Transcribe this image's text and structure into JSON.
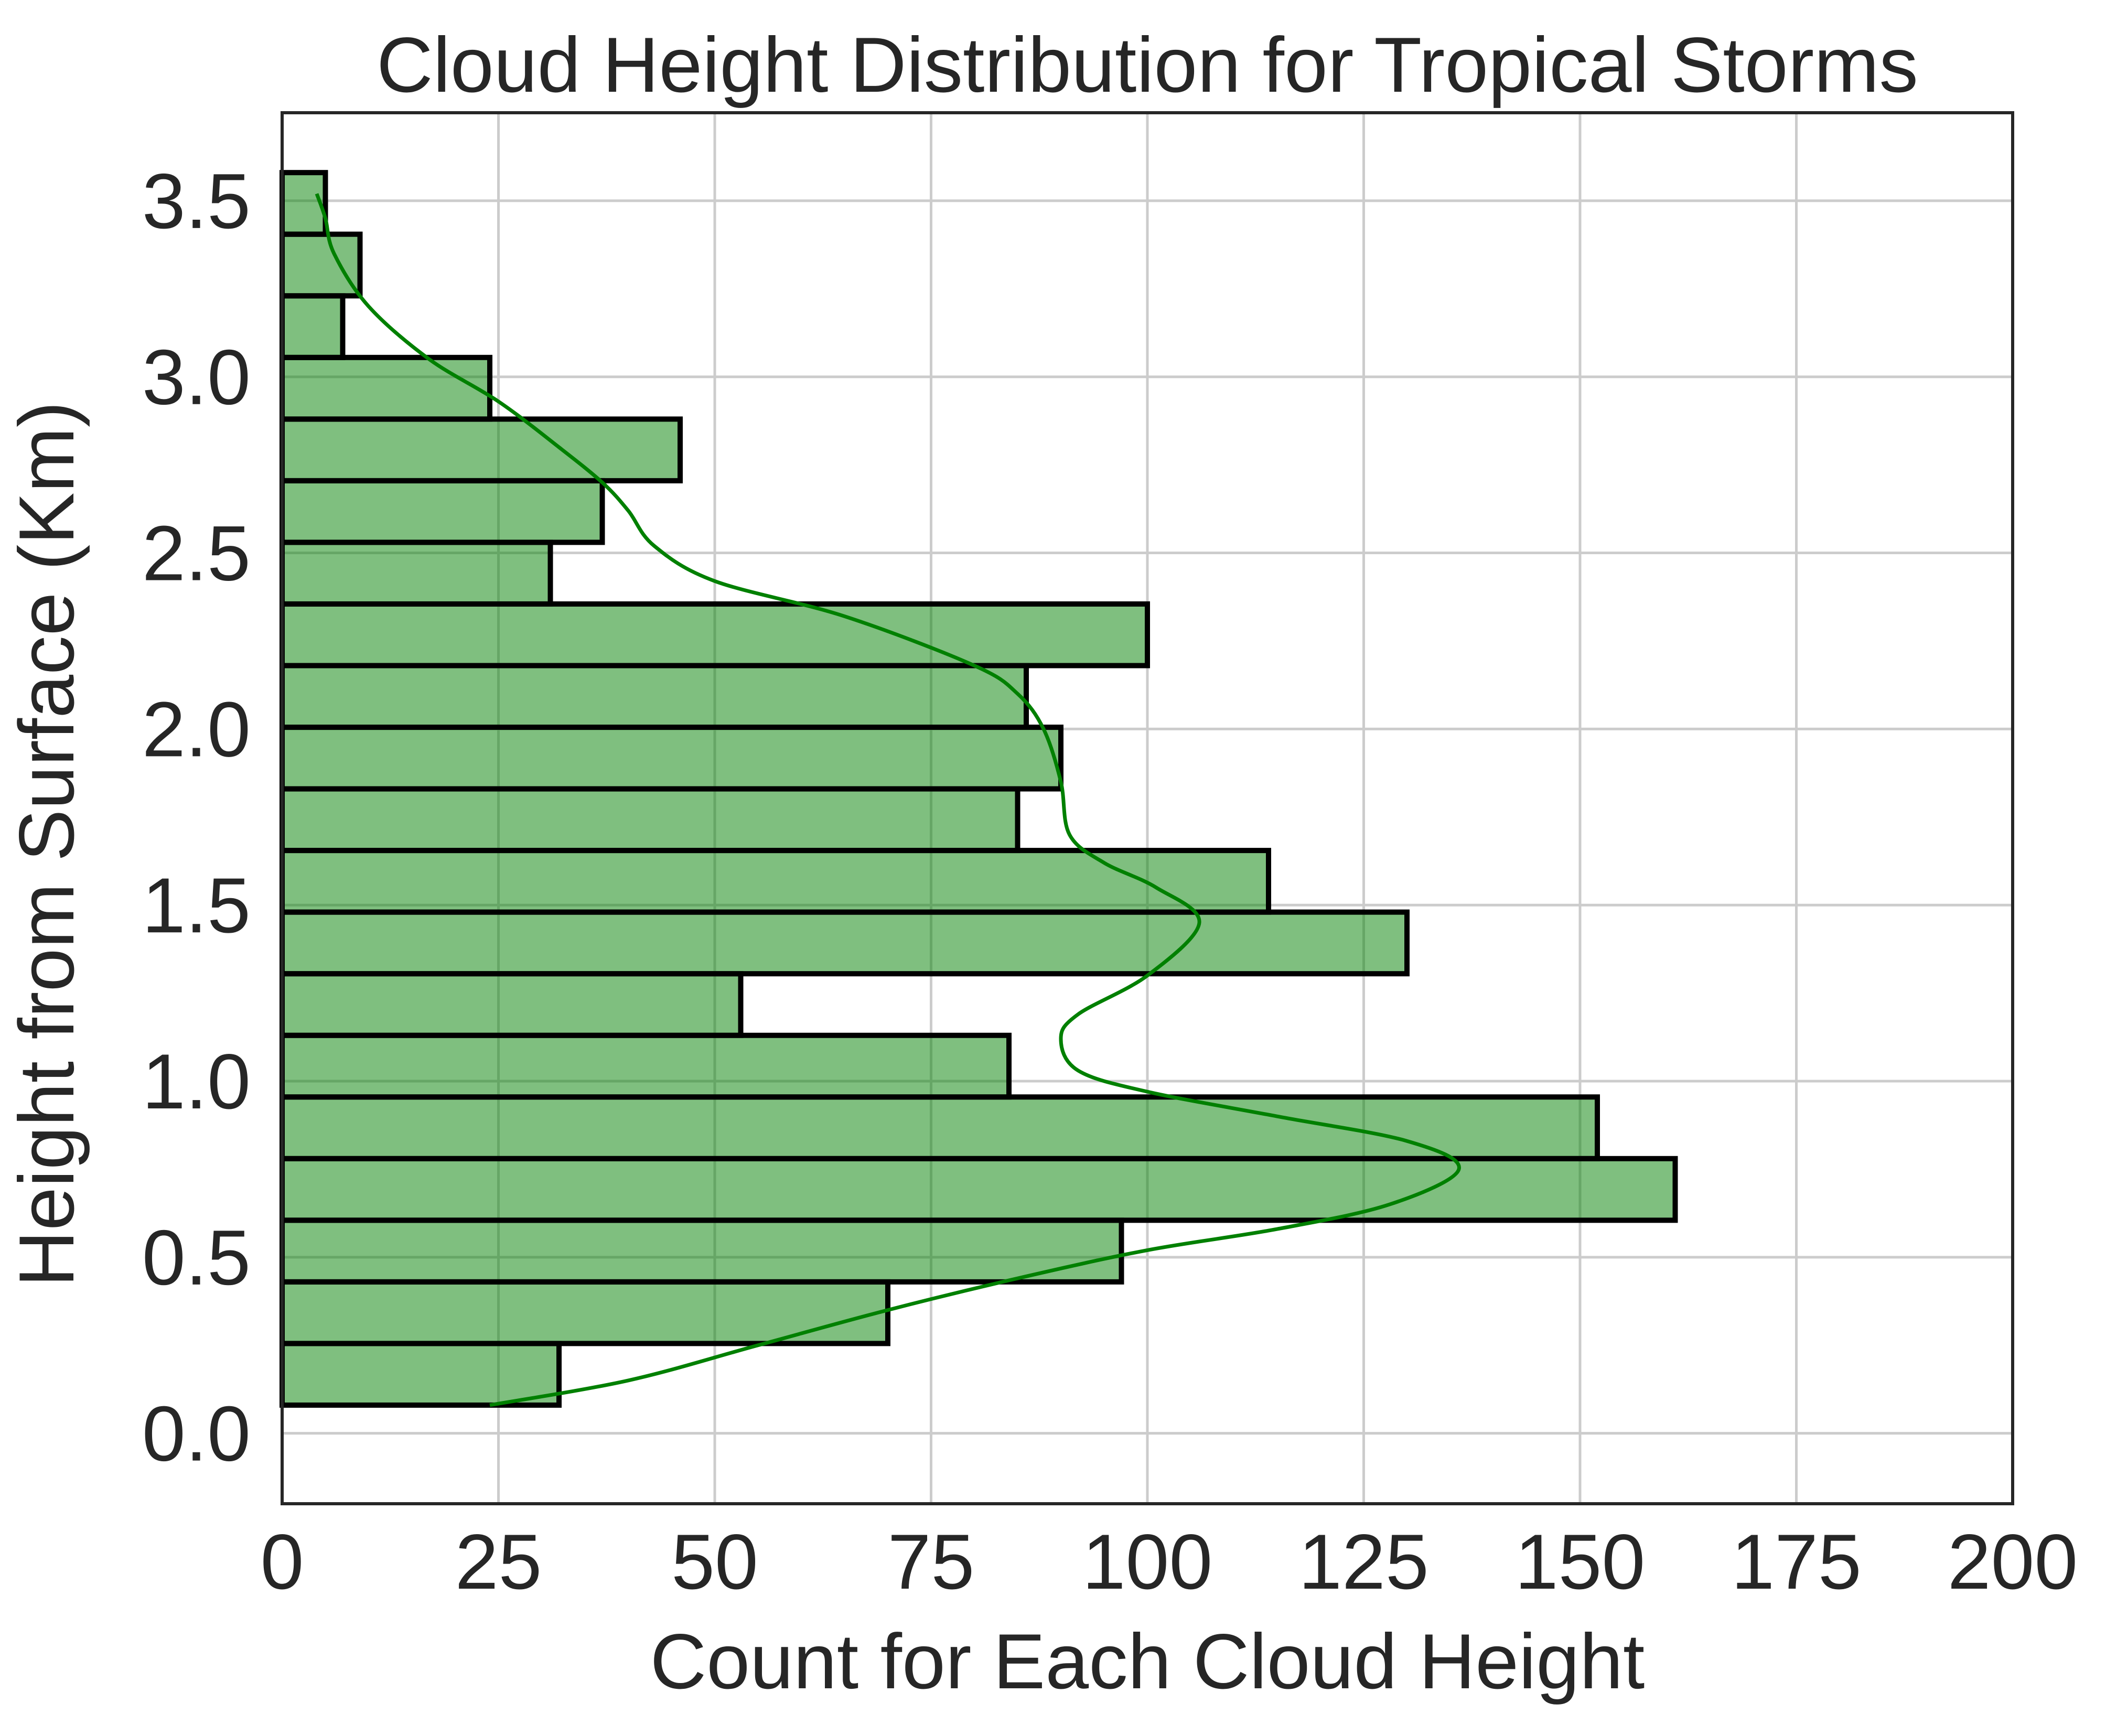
{
  "chart_data": {
    "type": "histogram",
    "orientation": "horizontal",
    "title": "Cloud Height Distribution for Tropical Storms",
    "xlabel": "Count for Each Cloud Height",
    "ylabel": "Height from Surface (Km)",
    "xlim": [
      0,
      200
    ],
    "ylim": [
      -0.2,
      3.75
    ],
    "xticks": [
      "0",
      "25",
      "50",
      "75",
      "100",
      "125",
      "150",
      "175",
      "200"
    ],
    "yticks": [
      "0.0",
      "0.5",
      "1.0",
      "1.5",
      "2.0",
      "2.5",
      "3.0",
      "3.5"
    ],
    "grid": true,
    "bars": [
      {
        "y0": 0.08,
        "y1": 0.255,
        "count": 32
      },
      {
        "y0": 0.255,
        "y1": 0.43,
        "count": 70
      },
      {
        "y0": 0.43,
        "y1": 0.605,
        "count": 97
      },
      {
        "y0": 0.605,
        "y1": 0.78,
        "count": 161
      },
      {
        "y0": 0.78,
        "y1": 0.955,
        "count": 152
      },
      {
        "y0": 0.955,
        "y1": 1.13,
        "count": 84
      },
      {
        "y0": 1.13,
        "y1": 1.305,
        "count": 53
      },
      {
        "y0": 1.305,
        "y1": 1.48,
        "count": 130
      },
      {
        "y0": 1.48,
        "y1": 1.655,
        "count": 114
      },
      {
        "y0": 1.655,
        "y1": 1.83,
        "count": 85
      },
      {
        "y0": 1.83,
        "y1": 2.005,
        "count": 90
      },
      {
        "y0": 2.005,
        "y1": 2.18,
        "count": 86
      },
      {
        "y0": 2.18,
        "y1": 2.355,
        "count": 100
      },
      {
        "y0": 2.355,
        "y1": 2.53,
        "count": 31
      },
      {
        "y0": 2.53,
        "y1": 2.705,
        "count": 37
      },
      {
        "y0": 2.705,
        "y1": 2.88,
        "count": 46
      },
      {
        "y0": 2.88,
        "y1": 3.055,
        "count": 24
      },
      {
        "y0": 3.055,
        "y1": 3.23,
        "count": 7
      },
      {
        "y0": 3.23,
        "y1": 3.405,
        "count": 9
      },
      {
        "y0": 3.405,
        "y1": 3.58,
        "count": 5
      }
    ],
    "kde": [
      [
        24,
        0.08
      ],
      [
        40,
        0.15
      ],
      [
        55,
        0.25
      ],
      [
        70,
        0.35
      ],
      [
        85,
        0.44
      ],
      [
        100,
        0.52
      ],
      [
        115,
        0.58
      ],
      [
        128,
        0.65
      ],
      [
        136,
        0.75
      ],
      [
        130,
        0.83
      ],
      [
        115,
        0.9
      ],
      [
        100,
        0.97
      ],
      [
        92,
        1.03
      ],
      [
        90,
        1.12
      ],
      [
        92,
        1.19
      ],
      [
        100,
        1.3
      ],
      [
        106,
        1.45
      ],
      [
        101,
        1.55
      ],
      [
        95,
        1.62
      ],
      [
        91,
        1.7
      ],
      [
        90,
        1.85
      ],
      [
        88,
        2.0
      ],
      [
        85,
        2.1
      ],
      [
        80,
        2.18
      ],
      [
        65,
        2.32
      ],
      [
        50,
        2.42
      ],
      [
        43,
        2.52
      ],
      [
        40,
        2.62
      ],
      [
        37,
        2.7
      ],
      [
        32,
        2.8
      ],
      [
        25,
        2.93
      ],
      [
        17,
        3.05
      ],
      [
        10,
        3.2
      ],
      [
        6,
        3.35
      ],
      [
        5,
        3.45
      ],
      [
        4,
        3.52
      ]
    ],
    "colors": {
      "bar_fill": "#80c080",
      "bar_edge": "#000000",
      "kde_line": "#008000",
      "grid": "#cccccc",
      "text": "#262626"
    }
  }
}
